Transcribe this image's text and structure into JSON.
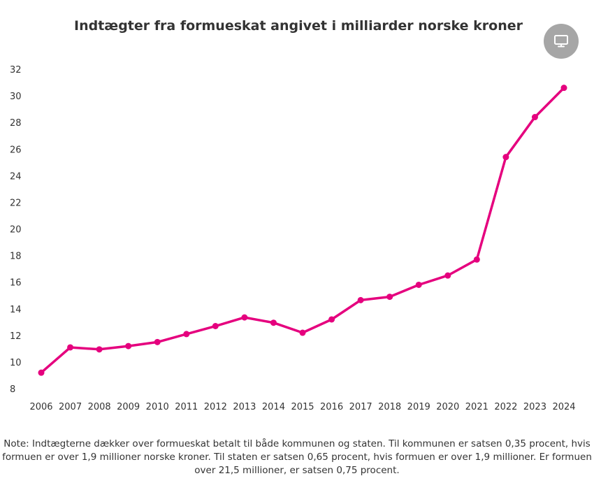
{
  "chart_data": {
    "type": "line",
    "title": "Indtægter fra formueskat angivet i milliarder norske kroner",
    "xlabel": "",
    "ylabel": "",
    "categories": [
      "2006",
      "2007",
      "2008",
      "2009",
      "2010",
      "2011",
      "2012",
      "2013",
      "2014",
      "2015",
      "2016",
      "2017",
      "2018",
      "2019",
      "2020",
      "2021",
      "2022",
      "2023",
      "2024"
    ],
    "series": [
      {
        "name": "Indtægter fra formueskat",
        "values": [
          9.2,
          11.1,
          10.95,
          11.2,
          11.5,
          12.1,
          12.7,
          13.35,
          12.95,
          12.2,
          13.2,
          14.65,
          14.9,
          15.8,
          16.5,
          17.7,
          25.4,
          28.4,
          30.6
        ],
        "color": "#e5007e"
      }
    ],
    "y_ticks": [
      8,
      10,
      12,
      14,
      16,
      18,
      20,
      22,
      24,
      26,
      28,
      30,
      32
    ],
    "ylim": [
      8,
      32
    ],
    "grid": false,
    "note": "Note: Indtægterne dækker over formueskat betalt til både kommunen og staten. Til kommunen er satsen 0,35 procent, hvis formuen er over 1,9 millioner norske kroner. Til staten er satsen 0,65 procent, hvis formuen er over 1,9 millioner. Er formuen over 21,5 millioner, er satsen 0,75 procent."
  },
  "toolbar": {
    "screen_icon": "monitor-icon",
    "button_color": "#a6a6a6"
  }
}
